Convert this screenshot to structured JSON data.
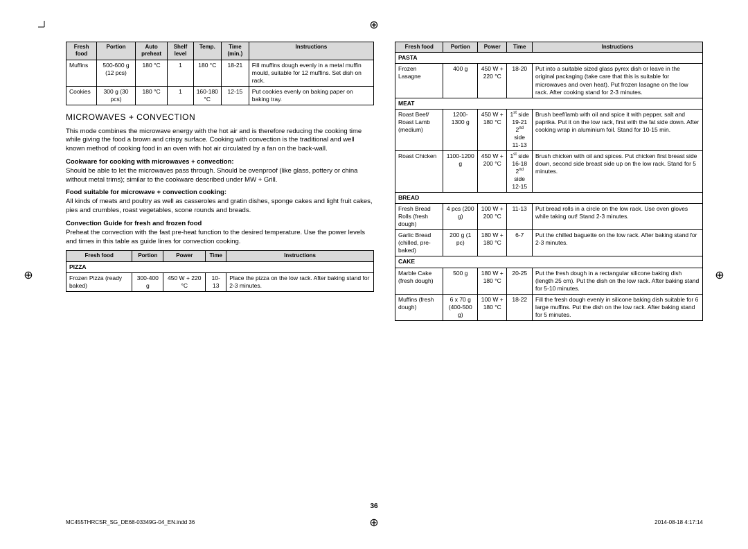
{
  "pageNumber": "36",
  "footer": {
    "left": "MC455THRCSR_SG_DE68-03349G-04_EN.indd   36",
    "right": "2014-08-18   4:17:14"
  },
  "table1": {
    "headers": [
      "Fresh food",
      "Portion",
      "Auto preheat",
      "Shelf level",
      "Temp.",
      "Time (min.)",
      "Instructions"
    ],
    "rows": [
      [
        "Muffins",
        "500-600 g (12 pcs)",
        "180 °C",
        "1",
        "180 °C",
        "18-21",
        "Fill muffins dough evenly in a metal muffin mould, suitable for 12 muffins. Set dish on rack."
      ],
      [
        "Cookies",
        "300 g (30 pcs)",
        "180 °C",
        "1",
        "160-180 °C",
        "12-15",
        "Put cookies evenly on baking paper on baking tray."
      ]
    ]
  },
  "heading": "MICROWAVES + CONVECTION",
  "para1": "This mode combines the microwave energy with the hot air and is therefore reducing the cooking time while giving the food a brown and crispy surface. Cooking with convection is the traditional and well known method of cooking food in an oven with hot air circulated by a fan on the back-wall.",
  "sub1": "Cookware for cooking with microwaves + convection:",
  "para2": "Should be able to let the microwaves pass through. Should be ovenproof (like glass, pottery or china without metal trims); similar to the cookware described under MW + Grill.",
  "sub2": "Food suitable for microwave + convection cooking:",
  "para3": "All kinds of meats and poultry as well as casseroles and gratin dishes, sponge cakes and light fruit cakes, pies and crumbles, roast vegetables, scone rounds and breads.",
  "sub3": "Convection Guide for fresh and frozen food",
  "para4": "Preheat the convection with the fast pre-heat function to the desired temperature. Use the power levels and times in this table as guide lines for convection cooking.",
  "table2": {
    "headers": [
      "Fresh food",
      "Portion",
      "Power",
      "Time",
      "Instructions"
    ],
    "sections": [
      {
        "title": "PIZZA",
        "rows": [
          [
            "Frozen Pizza (ready baked)",
            "300-400 g",
            "450 W + 220 °C",
            "10-13",
            "Place the pizza on the low rack. After baking stand for 2-3 minutes."
          ]
        ]
      }
    ]
  },
  "table3": {
    "headers": [
      "Fresh food",
      "Portion",
      "Power",
      "Time",
      "Instructions"
    ],
    "sections": [
      {
        "title": "PASTA",
        "rows": [
          [
            "Frozen Lasagne",
            "400 g",
            "450 W + 220 °C",
            "18-20",
            "Put into a suitable sized glass pyrex dish or leave in the original packaging (take care that this is suitable for microwaves and oven heat). Put frozen lasagne on the low rack. After cooking stand for 2-3 minutes."
          ]
        ]
      },
      {
        "title": "MEAT",
        "rows": [
          [
            "Roast Beef/ Roast Lamb (medium)",
            "1200-1300 g",
            "450 W + 180 °C",
            "1st side 19-21 2nd side 11-13",
            "Brush beef/lamb with oil and spice it with pepper, salt and paprika. Put it on the low rack, first with the fat side down. After cooking wrap in aluminium foil. Stand for 10-15 min."
          ],
          [
            "Roast Chicken",
            "1100-1200 g",
            "450 W + 200 °C",
            "1st side 16-18 2nd side 12-15",
            "Brush chicken with oil and spices. Put chicken first breast side down, second side breast side up on the low rack. Stand for 5 minutes."
          ]
        ]
      },
      {
        "title": "BREAD",
        "rows": [
          [
            "Fresh Bread Rolls (fresh dough)",
            "4 pcs (200 g)",
            "100 W + 200 °C",
            "11-13",
            "Put bread rolls in a circle on the low rack. Use oven gloves while taking out! Stand 2-3 minutes."
          ],
          [
            "Garlic Bread (chilled, pre-baked)",
            "200 g (1 pc)",
            "180 W + 180 °C",
            "6-7",
            "Put the chilled baguette on the low rack. After baking stand for 2-3 minutes."
          ]
        ]
      },
      {
        "title": "CAKE",
        "rows": [
          [
            "Marble Cake (fresh dough)",
            "500 g",
            "180 W + 180 °C",
            "20-25",
            "Put the fresh dough in a rectangular silicone baking dish (length 25 cm). Put the dish on the low rack. After baking stand for 5-10 minutes."
          ],
          [
            "Muffins (fresh dough)",
            "6 x 70 g (400-500 g)",
            "100 W + 180 °C",
            "18-22",
            "Fill the fresh dough evenly in silicone baking dish suitable for 6 large muffins. Put the dish on the low rack. After baking stand for 5 minutes."
          ]
        ]
      }
    ]
  }
}
